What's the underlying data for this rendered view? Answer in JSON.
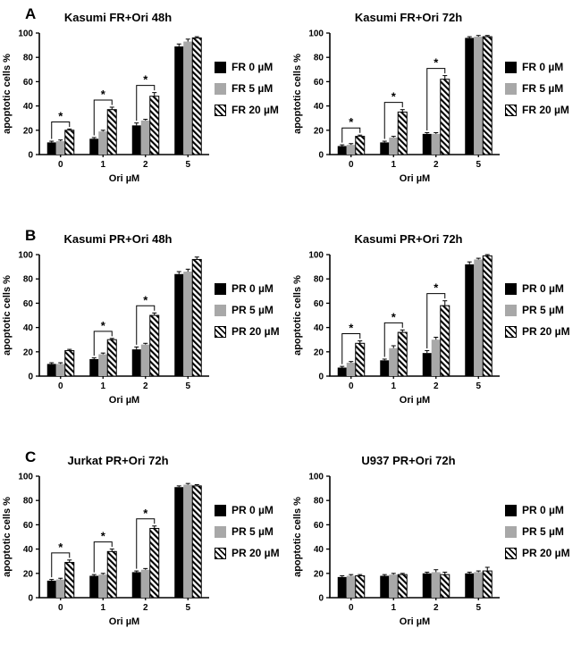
{
  "figure": {
    "background": "#ffffff"
  },
  "colors": {
    "black": "#000000",
    "gray": "#a8a8a8",
    "hatch_fg": "#000000",
    "hatch_bg": "#ffffff",
    "axis": "#000000"
  },
  "panels": [
    {
      "label": "A"
    },
    {
      "label": "B"
    },
    {
      "label": "C"
    }
  ],
  "chart_data": [
    {
      "type": "bar",
      "title": "Kasumi FR+Ori 48h",
      "xlabel": "Ori µM",
      "ylabel": "apoptotic cells %",
      "ylim": [
        0,
        100
      ],
      "yticks": [
        0,
        20,
        40,
        60,
        80,
        100
      ],
      "categories": [
        "0",
        "1",
        "2",
        "5"
      ],
      "grid": false,
      "legend_position": "right",
      "series": [
        {
          "name": "FR 0 µM",
          "style": "black",
          "values": [
            10,
            13,
            24,
            89
          ],
          "errors": [
            1,
            1,
            2,
            2
          ]
        },
        {
          "name": "FR 5 µM",
          "style": "gray",
          "values": [
            11,
            19,
            28,
            93
          ],
          "errors": [
            1,
            1,
            1,
            2
          ]
        },
        {
          "name": "FR 20 µM",
          "style": "hatched",
          "values": [
            20,
            37,
            48,
            96
          ],
          "errors": [
            1,
            2,
            3,
            1
          ]
        }
      ],
      "significance": [
        {
          "group": 0,
          "label": "*"
        },
        {
          "group": 1,
          "label": "*"
        },
        {
          "group": 2,
          "label": "*"
        }
      ]
    },
    {
      "type": "bar",
      "title": "Kasumi FR+Ori 72h",
      "xlabel": "Ori µM",
      "ylabel": "apoptotic cells %",
      "ylim": [
        0,
        100
      ],
      "yticks": [
        0,
        20,
        40,
        60,
        80,
        100
      ],
      "categories": [
        "0",
        "1",
        "2",
        "5"
      ],
      "grid": false,
      "legend_position": "right",
      "series": [
        {
          "name": "FR 0 µM",
          "style": "black",
          "values": [
            7,
            10,
            17,
            96
          ],
          "errors": [
            1,
            1,
            1,
            1
          ]
        },
        {
          "name": "FR 5 µM",
          "style": "gray",
          "values": [
            8,
            14,
            17,
            97
          ],
          "errors": [
            1,
            1,
            1,
            1
          ]
        },
        {
          "name": "FR 20 µM",
          "style": "hatched",
          "values": [
            15,
            35,
            62,
            97
          ],
          "errors": [
            1,
            2,
            3,
            1
          ]
        }
      ],
      "significance": [
        {
          "group": 0,
          "label": "*"
        },
        {
          "group": 1,
          "label": "*"
        },
        {
          "group": 2,
          "label": "*"
        }
      ]
    },
    {
      "type": "bar",
      "title": "Kasumi PR+Ori 48h",
      "xlabel": "Ori µM",
      "ylabel": "apoptotic cells %",
      "ylim": [
        0,
        100
      ],
      "yticks": [
        0,
        20,
        40,
        60,
        80,
        100
      ],
      "categories": [
        "0",
        "1",
        "2",
        "5"
      ],
      "grid": false,
      "legend_position": "right",
      "series": [
        {
          "name": "PR 0 µM",
          "style": "black",
          "values": [
            10,
            14,
            22,
            84
          ],
          "errors": [
            1,
            1,
            2,
            2
          ]
        },
        {
          "name": "PR 5 µM",
          "style": "gray",
          "values": [
            10,
            18,
            26,
            86
          ],
          "errors": [
            1,
            1,
            1,
            2
          ]
        },
        {
          "name": "PR 20 µM",
          "style": "hatched",
          "values": [
            21,
            30,
            50,
            96
          ],
          "errors": [
            1,
            1,
            2,
            2
          ]
        }
      ],
      "significance": [
        {
          "group": 1,
          "label": "*"
        },
        {
          "group": 2,
          "label": "*"
        }
      ]
    },
    {
      "type": "bar",
      "title": "Kasumi PR+Ori 72h",
      "xlabel": "Ori µM",
      "ylabel": "apoptotic cells %",
      "ylim": [
        0,
        100
      ],
      "yticks": [
        0,
        20,
        40,
        60,
        80,
        100
      ],
      "categories": [
        "0",
        "1",
        "2",
        "5"
      ],
      "grid": false,
      "legend_position": "right",
      "series": [
        {
          "name": "PR 0 µM",
          "style": "black",
          "values": [
            7,
            13,
            19,
            92
          ],
          "errors": [
            1,
            1,
            2,
            2
          ]
        },
        {
          "name": "PR 5 µM",
          "style": "gray",
          "values": [
            11,
            23,
            30,
            96
          ],
          "errors": [
            1,
            2,
            2,
            1
          ]
        },
        {
          "name": "PR 20 µM",
          "style": "hatched",
          "values": [
            27,
            36,
            58,
            99
          ],
          "errors": [
            2,
            2,
            4,
            1
          ]
        }
      ],
      "significance": [
        {
          "group": 0,
          "label": "*"
        },
        {
          "group": 1,
          "label": "*"
        },
        {
          "group": 2,
          "label": "*"
        }
      ]
    },
    {
      "type": "bar",
      "title": "Jurkat PR+Ori 72h",
      "xlabel": "Ori µM",
      "ylabel": "apoptotic cells %",
      "ylim": [
        0,
        100
      ],
      "yticks": [
        0,
        20,
        40,
        60,
        80,
        100
      ],
      "categories": [
        "0",
        "1",
        "2",
        "5"
      ],
      "grid": false,
      "legend_position": "right",
      "series": [
        {
          "name": "PR 0 µM",
          "style": "black",
          "values": [
            14,
            18,
            21,
            91
          ],
          "errors": [
            1,
            1,
            1,
            1
          ]
        },
        {
          "name": "PR 5 µM",
          "style": "gray",
          "values": [
            15,
            19,
            23,
            93
          ],
          "errors": [
            1,
            1,
            1,
            1
          ]
        },
        {
          "name": "PR 20 µM",
          "style": "hatched",
          "values": [
            29,
            38,
            57,
            92
          ],
          "errors": [
            2,
            2,
            2,
            1
          ]
        }
      ],
      "significance": [
        {
          "group": 0,
          "label": "*"
        },
        {
          "group": 1,
          "label": "*"
        },
        {
          "group": 2,
          "label": "*"
        }
      ]
    },
    {
      "type": "bar",
      "title": "U937 PR+Ori 72h",
      "xlabel": "Ori µM",
      "ylabel": "apoptotic cells %",
      "ylim": [
        0,
        100
      ],
      "yticks": [
        0,
        20,
        40,
        60,
        80,
        100
      ],
      "categories": [
        "0",
        "1",
        "2",
        "5"
      ],
      "grid": false,
      "legend_position": "right",
      "series": [
        {
          "name": "PR 0 µM",
          "style": "black",
          "values": [
            17,
            18,
            20,
            20
          ],
          "errors": [
            1,
            1,
            1,
            1
          ]
        },
        {
          "name": "PR 5 µM",
          "style": "gray",
          "values": [
            18,
            19,
            21,
            21
          ],
          "errors": [
            1,
            1,
            2,
            1
          ]
        },
        {
          "name": "PR 20 µM",
          "style": "hatched",
          "values": [
            18,
            19,
            19,
            22
          ],
          "errors": [
            1,
            1,
            2,
            3
          ]
        }
      ],
      "significance": []
    }
  ]
}
